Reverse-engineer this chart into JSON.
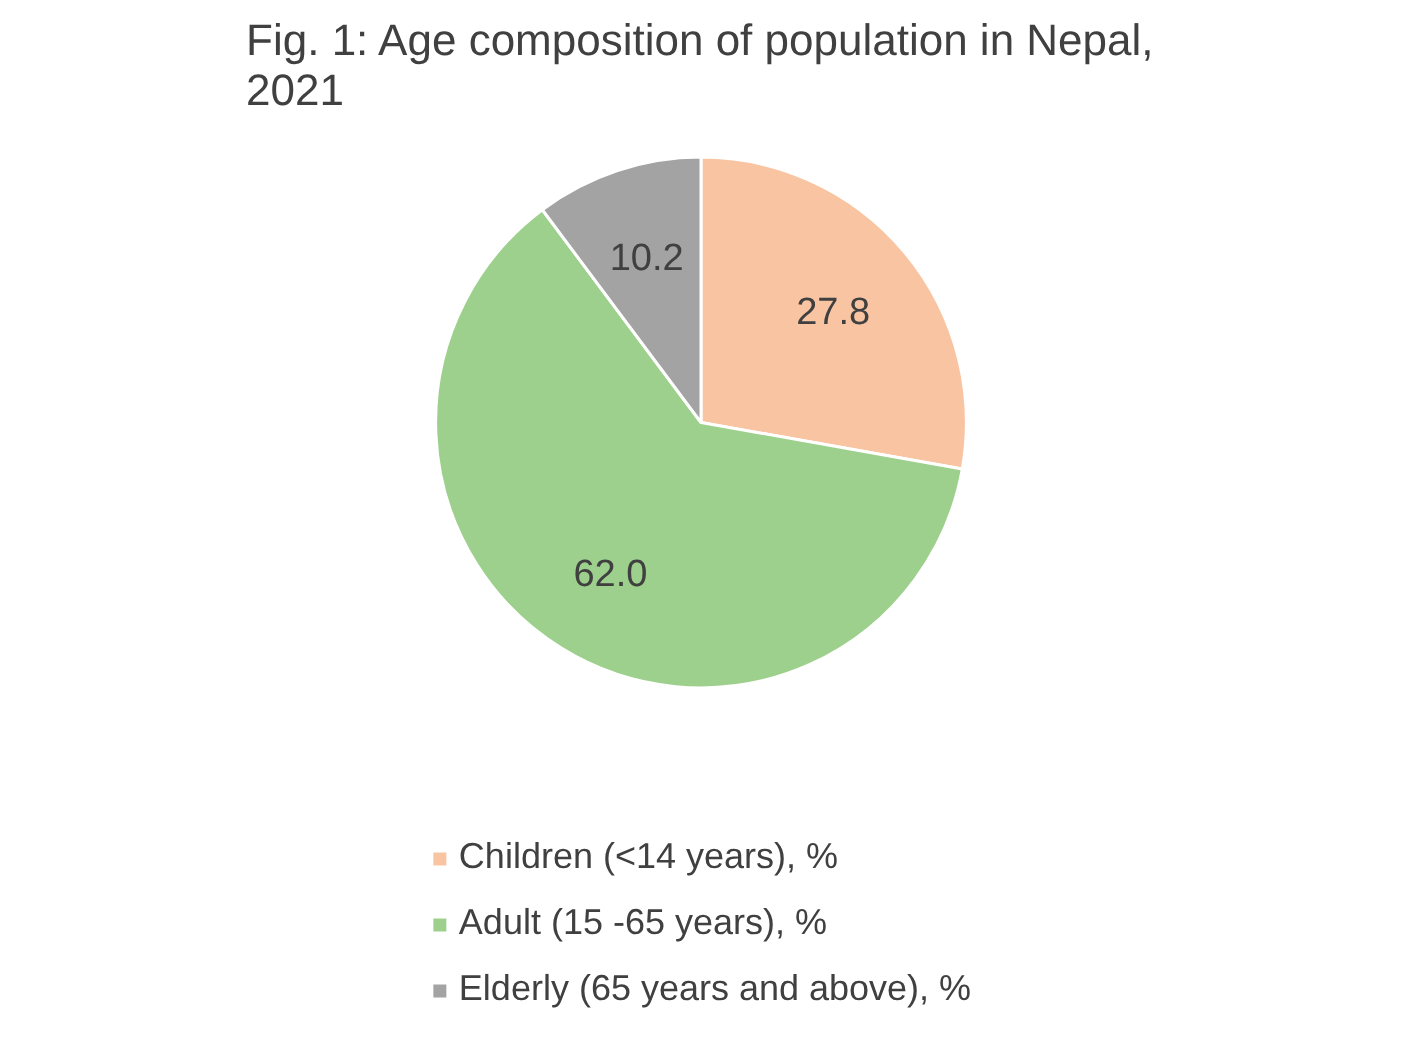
{
  "chart_data": {
    "type": "pie",
    "title": "Fig. 1: Age composition of population in Nepal, 2021",
    "categories": [
      "Children (<14 years), %",
      "Adult (15 -65 years), %",
      "Elderly (65 years and above), %"
    ],
    "values": [
      27.8,
      62.0,
      10.2
    ],
    "colors": [
      "#f8c4a2",
      "#9dd08c",
      "#a3a3a3"
    ],
    "value_labels": [
      "27.8",
      "62.0",
      "10.2"
    ],
    "legend": "bottom"
  }
}
